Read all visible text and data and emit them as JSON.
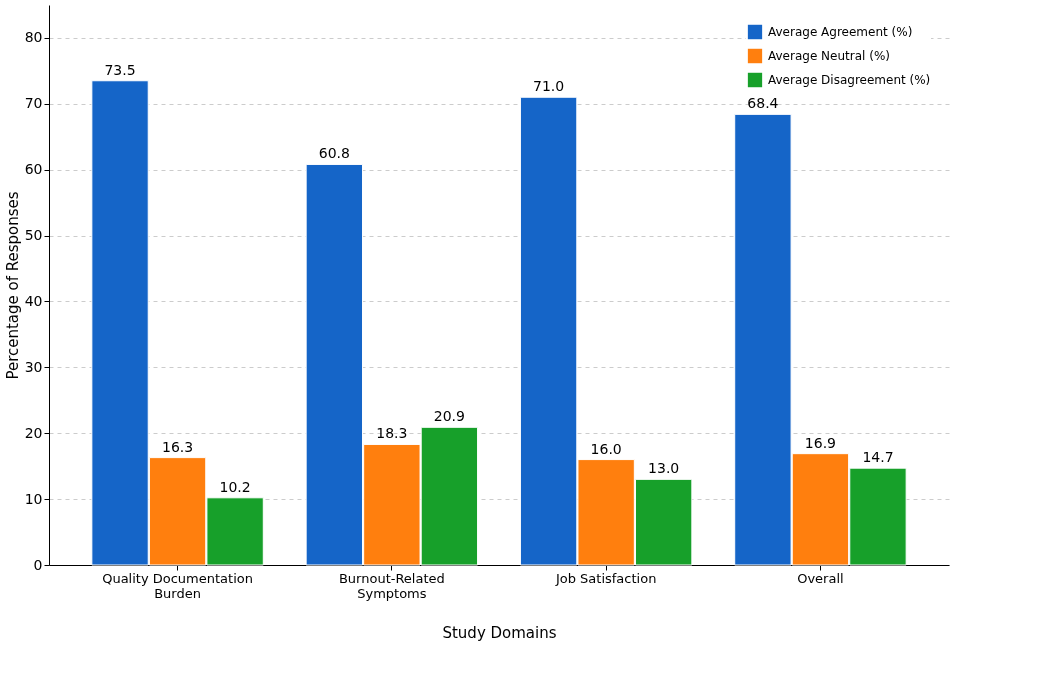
{
  "chart_data": {
    "type": "bar",
    "categories": [
      "Quality Documentation Burden",
      "Burnout-Related Symptoms",
      "Job Satisfaction",
      "Overall"
    ],
    "series": [
      {
        "name": "Average Agreement (%)",
        "color": "#1565c8",
        "values": [
          73.5,
          60.8,
          71.0,
          68.4
        ],
        "value_labels": [
          "73.5",
          "60.8",
          "71.0",
          "68.4"
        ]
      },
      {
        "name": "Average Neutral (%)",
        "color": "#ff7f0e",
        "values": [
          16.3,
          18.3,
          16.0,
          16.9
        ],
        "value_labels": [
          "16.3",
          "18.3",
          "16.0",
          "16.9"
        ]
      },
      {
        "name": "Average Disagreement (%)",
        "color": "#17a02a",
        "values": [
          10.2,
          20.9,
          13.0,
          14.7
        ],
        "value_labels": [
          "10.2",
          "20.9",
          "13.0",
          "14.7"
        ]
      }
    ],
    "xlabel": "Study Domains",
    "ylabel": "Percentage of Responses",
    "ylim": [
      0,
      85
    ],
    "yticks": [
      0,
      10,
      20,
      30,
      40,
      50,
      60,
      70,
      80
    ],
    "grid": "y",
    "legend": "top right"
  }
}
